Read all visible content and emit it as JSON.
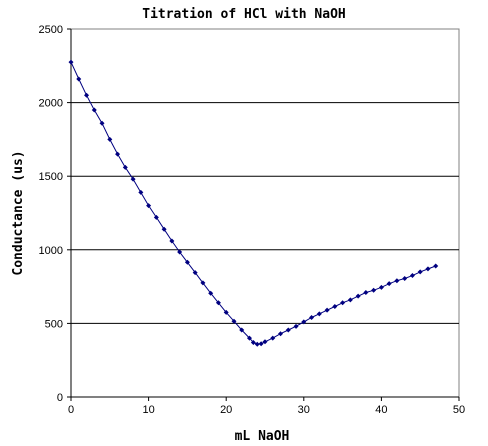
{
  "chart_data": {
    "type": "line",
    "title": "Titration of HCl with NaOH",
    "xlabel": "mL NaOH",
    "ylabel": "Conductance (us)",
    "xlim": [
      0,
      50
    ],
    "ylim": [
      0,
      2500
    ],
    "x_ticks": [
      "0",
      "10",
      "20",
      "30",
      "40",
      "50"
    ],
    "y_ticks": [
      "0",
      "500",
      "1000",
      "1500",
      "2000",
      "2500"
    ],
    "grid": "horizontal",
    "legend": "none",
    "colors": {
      "series": "#000080",
      "grid": "#000000",
      "plot_border": "#808080"
    },
    "series": [
      {
        "x": [
          0,
          1,
          2,
          3,
          4,
          5,
          6,
          7,
          8,
          9,
          10,
          11,
          12,
          13,
          14,
          15,
          16,
          17,
          18,
          19,
          20,
          21,
          22,
          23,
          23.5,
          24,
          24.5,
          25,
          26,
          27,
          28,
          29,
          30,
          31,
          32,
          33,
          34,
          35,
          36,
          37,
          38,
          39,
          40,
          41,
          42,
          43,
          44,
          45,
          46,
          47
        ],
        "y": [
          2275,
          2160,
          2050,
          1950,
          1860,
          1750,
          1650,
          1560,
          1480,
          1390,
          1300,
          1220,
          1140,
          1060,
          985,
          915,
          845,
          775,
          705,
          640,
          575,
          515,
          455,
          400,
          370,
          358,
          362,
          375,
          400,
          430,
          455,
          480,
          510,
          540,
          565,
          590,
          615,
          640,
          660,
          685,
          710,
          725,
          745,
          770,
          790,
          805,
          825,
          850,
          870,
          890
        ]
      }
    ]
  }
}
